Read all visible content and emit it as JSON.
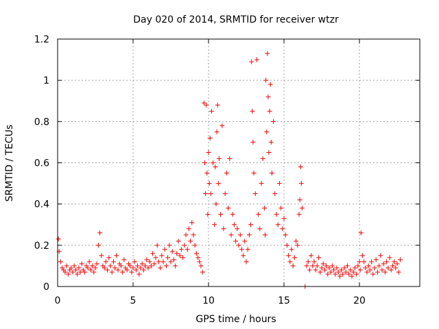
{
  "chart_data": {
    "type": "scatter",
    "title": "Day 020 of 2014, SRMTID for receiver wtzr",
    "xlabel": "GPS time / hours",
    "ylabel": "SRMTID / TECUs",
    "xlim": [
      0,
      24
    ],
    "ylim": [
      0,
      1.2
    ],
    "x_ticks": [
      0,
      5,
      10,
      15,
      20
    ],
    "x_tick_labels": [
      "0",
      "5",
      "10",
      "15",
      "20"
    ],
    "y_ticks": [
      0,
      0.2,
      0.4,
      0.6,
      0.8,
      1.0,
      1.2
    ],
    "y_tick_labels": [
      "0",
      "0.2",
      "0.4",
      "0.6",
      "0.8",
      "1",
      "1.2"
    ],
    "grid": true,
    "marker": "+",
    "color": "#ee0000",
    "series": [
      {
        "name": "SRMTID",
        "x": [
          0.05,
          0.1,
          0.2,
          0.3,
          0.4,
          0.5,
          0.6,
          0.7,
          0.8,
          0.9,
          1.0,
          1.1,
          1.2,
          1.3,
          1.4,
          1.5,
          1.6,
          1.7,
          1.8,
          1.9,
          2.0,
          2.1,
          2.2,
          2.3,
          2.4,
          2.5,
          2.6,
          2.7,
          2.8,
          2.9,
          3.0,
          3.1,
          3.2,
          3.3,
          3.4,
          3.5,
          3.6,
          3.7,
          3.8,
          3.9,
          4.0,
          4.1,
          4.2,
          4.3,
          4.4,
          4.5,
          4.6,
          4.7,
          4.8,
          4.9,
          5.0,
          5.1,
          5.2,
          5.3,
          5.4,
          5.5,
          5.6,
          5.7,
          5.8,
          5.9,
          6.0,
          6.1,
          6.2,
          6.3,
          6.4,
          6.5,
          6.6,
          6.7,
          6.8,
          6.9,
          7.0,
          7.1,
          7.2,
          7.3,
          7.4,
          7.5,
          7.6,
          7.7,
          7.8,
          7.9,
          8.0,
          8.1,
          8.2,
          8.3,
          8.4,
          8.5,
          8.6,
          8.7,
          8.8,
          8.9,
          9.0,
          9.1,
          9.2,
          9.3,
          9.4,
          9.5,
          9.6,
          9.7,
          9.75,
          9.8,
          9.85,
          9.9,
          9.95,
          10.0,
          10.05,
          10.1,
          10.15,
          10.2,
          10.3,
          10.4,
          10.45,
          10.5,
          10.55,
          10.6,
          10.65,
          10.7,
          10.8,
          10.9,
          11.0,
          11.1,
          11.2,
          11.3,
          11.4,
          11.5,
          11.6,
          11.7,
          11.8,
          11.9,
          12.0,
          12.1,
          12.2,
          12.3,
          12.4,
          12.5,
          12.6,
          12.7,
          12.8,
          12.85,
          12.9,
          12.95,
          13.0,
          13.1,
          13.2,
          13.3,
          13.4,
          13.5,
          13.6,
          13.7,
          13.75,
          13.8,
          13.85,
          13.9,
          13.95,
          14.0,
          14.05,
          14.1,
          14.15,
          14.2,
          14.3,
          14.4,
          14.5,
          14.6,
          14.7,
          14.8,
          14.9,
          15.0,
          15.1,
          15.2,
          15.3,
          15.4,
          15.5,
          15.6,
          15.7,
          15.8,
          15.9,
          16.0,
          16.05,
          16.1,
          16.15,
          16.2,
          16.4,
          16.5,
          16.6,
          16.7,
          16.8,
          16.9,
          17.0,
          17.1,
          17.2,
          17.3,
          17.4,
          17.5,
          17.6,
          17.7,
          17.8,
          17.9,
          18.0,
          18.1,
          18.2,
          18.3,
          18.4,
          18.5,
          18.6,
          18.7,
          18.8,
          18.9,
          19.0,
          19.1,
          19.2,
          19.3,
          19.4,
          19.5,
          19.6,
          19.7,
          19.8,
          19.9,
          20.0,
          20.05,
          20.1,
          20.2,
          20.3,
          20.4,
          20.5,
          20.6,
          20.7,
          20.8,
          20.9,
          21.0,
          21.1,
          21.2,
          21.3,
          21.4,
          21.5,
          21.6,
          21.7,
          21.8,
          21.9,
          22.0,
          22.1,
          22.2,
          22.3,
          22.4,
          22.5,
          22.6,
          22.7
        ],
        "y": [
          0.23,
          0.17,
          0.12,
          0.09,
          0.08,
          0.07,
          0.1,
          0.06,
          0.08,
          0.09,
          0.07,
          0.1,
          0.08,
          0.06,
          0.09,
          0.07,
          0.11,
          0.08,
          0.07,
          0.1,
          0.09,
          0.12,
          0.08,
          0.1,
          0.07,
          0.09,
          0.11,
          0.2,
          0.26,
          0.15,
          0.1,
          0.09,
          0.12,
          0.08,
          0.14,
          0.1,
          0.07,
          0.12,
          0.09,
          0.15,
          0.08,
          0.11,
          0.1,
          0.07,
          0.13,
          0.09,
          0.08,
          0.11,
          0.1,
          0.07,
          0.09,
          0.12,
          0.08,
          0.1,
          0.06,
          0.09,
          0.11,
          0.08,
          0.1,
          0.13,
          0.09,
          0.12,
          0.1,
          0.16,
          0.11,
          0.14,
          0.2,
          0.12,
          0.09,
          0.15,
          0.12,
          0.18,
          0.1,
          0.14,
          0.2,
          0.12,
          0.17,
          0.13,
          0.1,
          0.16,
          0.22,
          0.15,
          0.18,
          0.14,
          0.2,
          0.25,
          0.18,
          0.28,
          0.22,
          0.31,
          0.25,
          0.2,
          0.16,
          0.14,
          0.12,
          0.1,
          0.07,
          0.89,
          0.6,
          0.45,
          0.88,
          0.55,
          0.35,
          0.65,
          0.5,
          0.72,
          0.45,
          0.85,
          0.6,
          0.3,
          0.58,
          0.4,
          0.75,
          0.88,
          0.5,
          0.62,
          0.35,
          0.78,
          0.28,
          0.45,
          0.55,
          0.38,
          0.62,
          0.25,
          0.35,
          0.3,
          0.22,
          0.28,
          0.2,
          0.25,
          0.18,
          0.15,
          0.22,
          0.12,
          0.18,
          0.25,
          0.3,
          1.09,
          0.85,
          0.7,
          0.55,
          0.45,
          1.1,
          0.35,
          0.28,
          0.5,
          0.62,
          0.38,
          0.25,
          1.0,
          0.75,
          1.13,
          0.92,
          0.65,
          0.85,
          0.98,
          0.7,
          0.55,
          0.8,
          0.45,
          0.35,
          0.3,
          0.5,
          0.38,
          0.28,
          0.33,
          0.25,
          0.2,
          0.15,
          0.12,
          0.18,
          0.1,
          0.14,
          0.22,
          0.2,
          0.35,
          0.42,
          0.58,
          0.5,
          0.38,
          0.0,
          0.1,
          0.12,
          0.08,
          0.15,
          0.1,
          0.12,
          0.08,
          0.1,
          0.14,
          0.07,
          0.09,
          0.11,
          0.08,
          0.1,
          0.06,
          0.09,
          0.07,
          0.1,
          0.08,
          0.06,
          0.09,
          0.07,
          0.05,
          0.08,
          0.06,
          0.09,
          0.07,
          0.1,
          0.06,
          0.08,
          0.05,
          0.07,
          0.09,
          0.06,
          0.1,
          0.12,
          0.08,
          0.26,
          0.15,
          0.12,
          0.09,
          0.07,
          0.1,
          0.08,
          0.12,
          0.06,
          0.09,
          0.13,
          0.07,
          0.1,
          0.15,
          0.08,
          0.11,
          0.07,
          0.12,
          0.09,
          0.14,
          0.08,
          0.1,
          0.12,
          0.09,
          0.11,
          0.07,
          0.13
        ]
      }
    ]
  }
}
